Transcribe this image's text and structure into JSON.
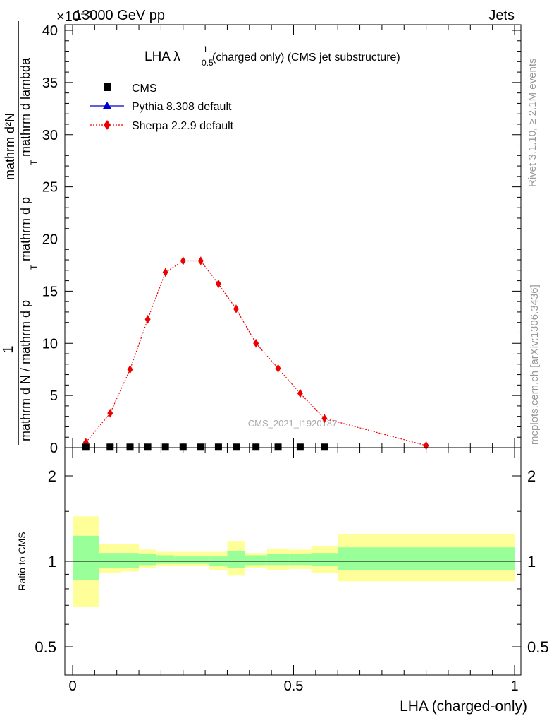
{
  "header": {
    "energy": "13000 GeV pp",
    "process": "Jets",
    "exponent_label": "×10⁻³"
  },
  "side": {
    "rivet": "Rivet 3.1.10, ≥ 2.1M events",
    "mcplots": "mcplots.cern.ch [arXiv:1306.3436]"
  },
  "watermark": "CMS_2021_I1920187",
  "colors": {
    "data": "#000000",
    "pythia": "#0000cc",
    "sherpa": "#ee0000",
    "band_inner": "#99ff99",
    "band_outer": "#ffff99"
  },
  "chart_data": [
    {
      "type": "line",
      "title": "LHA λ",
      "title_sup": "1",
      "title_sub": "0.5",
      "title_rest": "(charged only) (CMS jet substructure)",
      "ylabel_num": "1",
      "ylabel_den1": "mathrm d N / mathrm d p",
      "ylabel_den2": "mathrm d p",
      "ylabel_den3": "mathrm d lambda",
      "ylabel_den_frac_num": "mathrm d²N",
      "ylabel_sub": "T",
      "y_scale_factor": 0.001,
      "xlim": [
        0,
        1
      ],
      "ylim": [
        0,
        40
      ],
      "yticks": [
        0,
        5,
        10,
        15,
        20,
        25,
        30,
        35,
        40
      ],
      "legend_position": "top-left",
      "series": [
        {
          "name": "CMS",
          "marker": "square",
          "x": [
            0.03,
            0.085,
            0.13,
            0.17,
            0.21,
            0.25,
            0.29,
            0.33,
            0.37,
            0.415,
            0.465,
            0.515,
            0.57
          ],
          "y": [
            0.05,
            0.05,
            0.05,
            0.05,
            0.05,
            0.05,
            0.05,
            0.05,
            0.05,
            0.05,
            0.05,
            0.05,
            0.05
          ]
        },
        {
          "name": "Pythia 8.308 default",
          "marker": "triangle",
          "x": [],
          "y": []
        },
        {
          "name": "Sherpa 2.2.9 default",
          "marker": "diamond",
          "x": [
            0.03,
            0.085,
            0.13,
            0.17,
            0.21,
            0.25,
            0.29,
            0.33,
            0.37,
            0.415,
            0.465,
            0.515,
            0.57,
            0.8
          ],
          "y": [
            0.5,
            3.3,
            7.5,
            12.3,
            16.8,
            17.9,
            17.9,
            15.7,
            13.3,
            10.0,
            7.6,
            5.2,
            2.8,
            0.2
          ]
        }
      ]
    },
    {
      "type": "area",
      "ylabel": "Ratio to CMS",
      "xlabel": "LHA (charged-only)",
      "xlim": [
        0,
        1
      ],
      "ylim": [
        0.38,
        2.35
      ],
      "yticks": [
        0.5,
        1,
        2
      ],
      "xticks": [
        0,
        0.5,
        1
      ],
      "xtick_labels": [
        "0",
        "0.5",
        "1"
      ],
      "ytick_labels": [
        "0.5",
        "1",
        "2"
      ],
      "bins": [
        {
          "lo": 0.0,
          "hi": 0.06,
          "inner": [
            0.86,
            1.23
          ],
          "outer": [
            0.69,
            1.44
          ]
        },
        {
          "lo": 0.06,
          "hi": 0.11,
          "inner": [
            0.95,
            1.07
          ],
          "outer": [
            0.91,
            1.15
          ]
        },
        {
          "lo": 0.11,
          "hi": 0.15,
          "inner": [
            0.95,
            1.07
          ],
          "outer": [
            0.92,
            1.15
          ]
        },
        {
          "lo": 0.15,
          "hi": 0.19,
          "inner": [
            0.97,
            1.06
          ],
          "outer": [
            0.95,
            1.1
          ]
        },
        {
          "lo": 0.19,
          "hi": 0.23,
          "inner": [
            0.98,
            1.05
          ],
          "outer": [
            0.96,
            1.08
          ]
        },
        {
          "lo": 0.23,
          "hi": 0.27,
          "inner": [
            0.98,
            1.04
          ],
          "outer": [
            0.96,
            1.08
          ]
        },
        {
          "lo": 0.27,
          "hi": 0.31,
          "inner": [
            0.98,
            1.04
          ],
          "outer": [
            0.96,
            1.08
          ]
        },
        {
          "lo": 0.31,
          "hi": 0.35,
          "inner": [
            0.96,
            1.04
          ],
          "outer": [
            0.93,
            1.08
          ]
        },
        {
          "lo": 0.35,
          "hi": 0.39,
          "inner": [
            0.95,
            1.09
          ],
          "outer": [
            0.89,
            1.18
          ]
        },
        {
          "lo": 0.39,
          "hi": 0.44,
          "inner": [
            0.97,
            1.05
          ],
          "outer": [
            0.95,
            1.07
          ]
        },
        {
          "lo": 0.44,
          "hi": 0.49,
          "inner": [
            0.97,
            1.06
          ],
          "outer": [
            0.93,
            1.11
          ]
        },
        {
          "lo": 0.49,
          "hi": 0.54,
          "inner": [
            0.97,
            1.06
          ],
          "outer": [
            0.94,
            1.1
          ]
        },
        {
          "lo": 0.54,
          "hi": 0.6,
          "inner": [
            0.96,
            1.07
          ],
          "outer": [
            0.91,
            1.13
          ]
        },
        {
          "lo": 0.6,
          "hi": 1.0,
          "inner": [
            0.93,
            1.12
          ],
          "outer": [
            0.85,
            1.25
          ]
        }
      ],
      "reference": 1
    }
  ]
}
